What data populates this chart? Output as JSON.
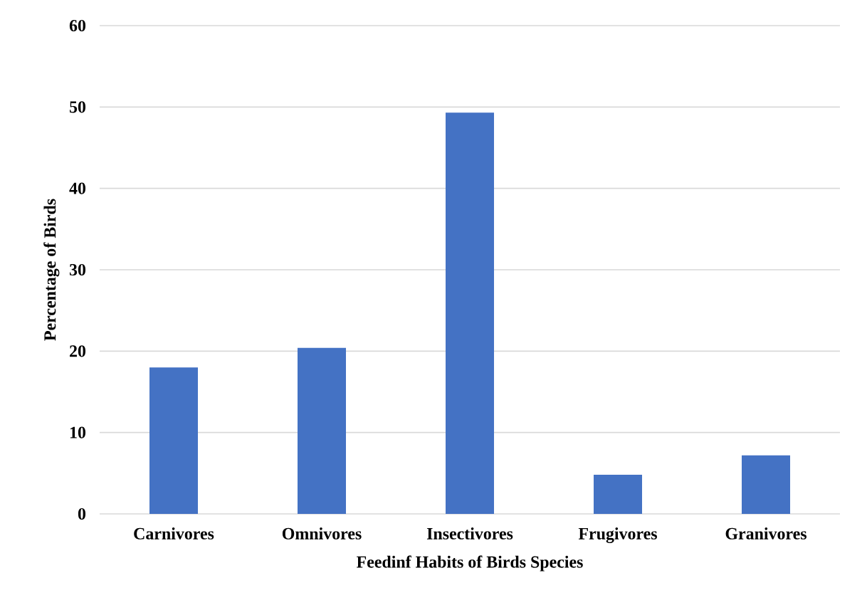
{
  "chart_data": {
    "type": "bar",
    "xlabel": "Feedinf Habits of Birds Species",
    "ylabel": "Percentage of Birds",
    "categories": [
      "Carnivores",
      "Omnivores",
      "Insectivores",
      "Frugivores",
      "Granivores"
    ],
    "values": [
      18.0,
      20.4,
      49.3,
      4.8,
      7.2
    ],
    "color": "#4472c4",
    "ylim": [
      0,
      60
    ],
    "yticks": [
      0,
      10,
      20,
      30,
      40,
      50,
      60
    ],
    "grid": "y"
  }
}
